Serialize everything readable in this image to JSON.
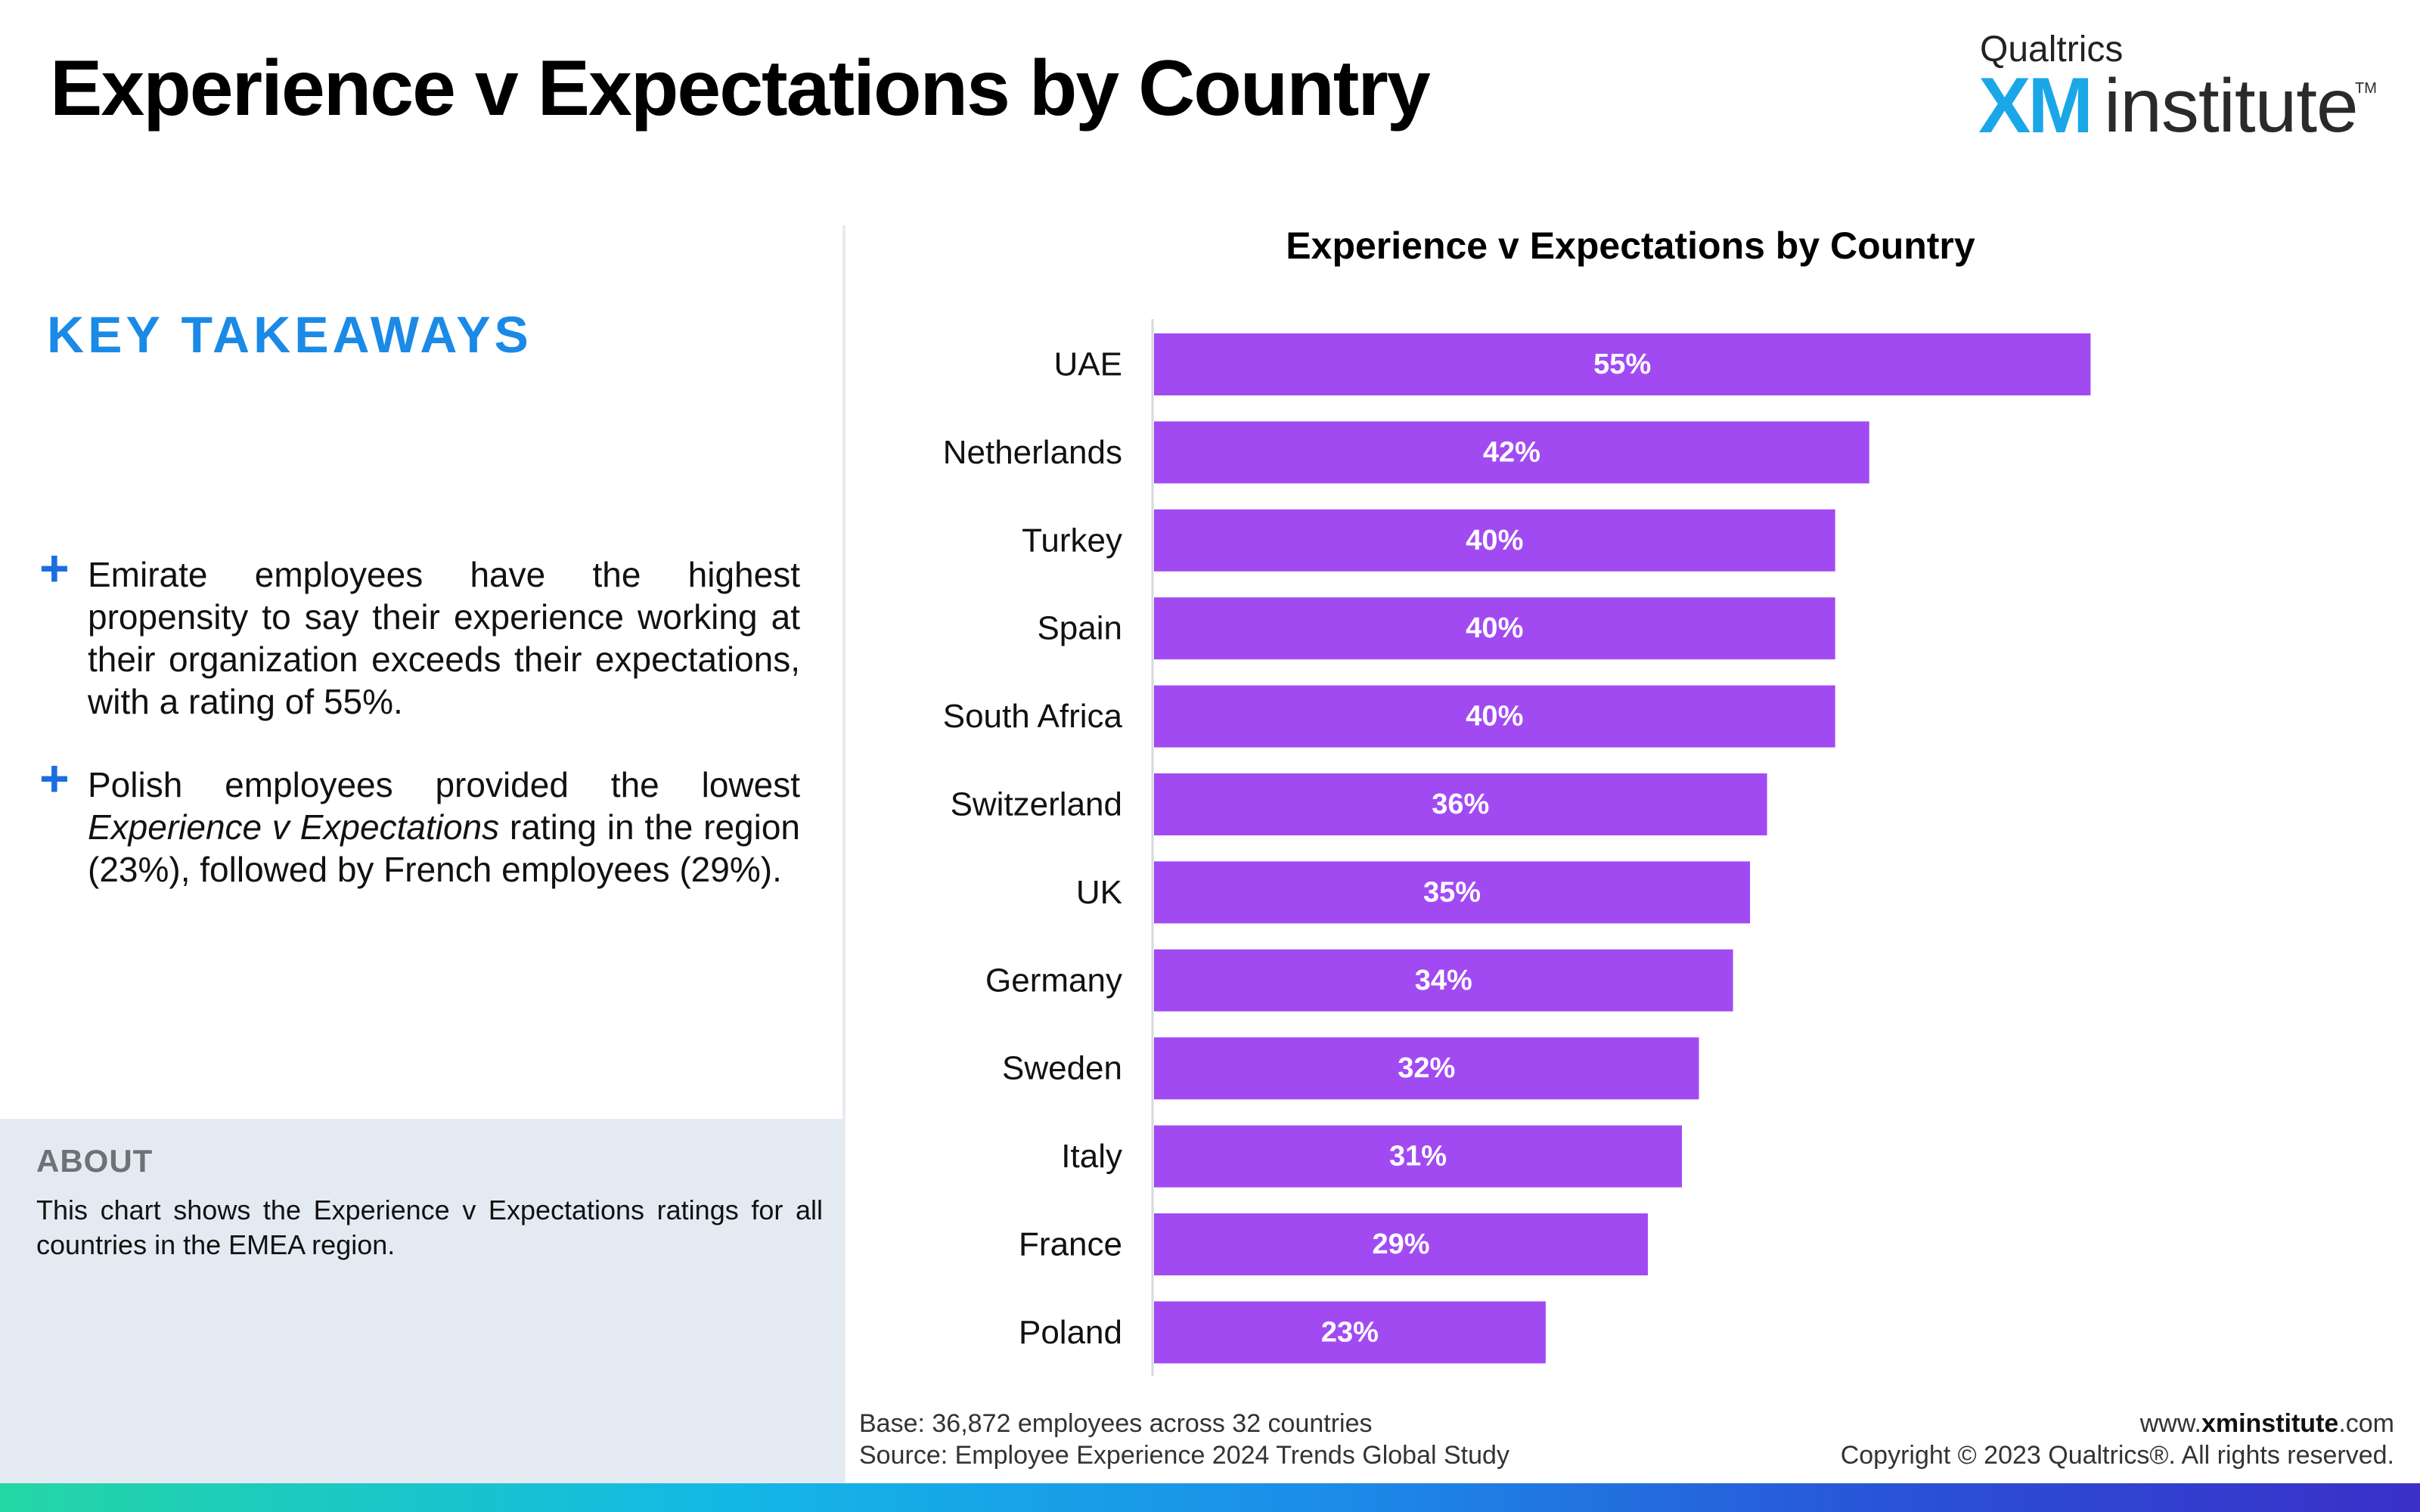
{
  "header": {
    "title": "Experience v Expectations by Country",
    "logo": {
      "company": "Qualtrics",
      "brand_xm": "XM",
      "brand_rest": "institute",
      "trademark": "TM"
    }
  },
  "takeaways": {
    "heading": "KEY TAKEAWAYS",
    "bullet_symbol": "+",
    "item1": "Emirate employees have the highest propensity to say their experience working at their organization exceeds their expectations, with a rating of 55%.",
    "item2": {
      "part1": "Polish employees provided the lowest ",
      "italic": "Experience v Expectations",
      "part2": " rating in the region (23%), followed by French employees (29%)."
    }
  },
  "about": {
    "heading": "ABOUT",
    "text": "This chart shows the Experience v Expectations ratings for all countries in the EMEA region."
  },
  "chart_data": {
    "type": "bar",
    "orientation": "horizontal",
    "title": "Experience v Expectations by Country",
    "categories": [
      "UAE",
      "Netherlands",
      "Turkey",
      "Spain",
      "South Africa",
      "Switzerland",
      "UK",
      "Germany",
      "Sweden",
      "Italy",
      "France",
      "Poland"
    ],
    "values": [
      55,
      42,
      40,
      40,
      40,
      36,
      35,
      34,
      32,
      31,
      29,
      23
    ],
    "value_labels": [
      "55%",
      "42%",
      "40%",
      "40%",
      "40%",
      "36%",
      "35%",
      "34%",
      "32%",
      "31%",
      "29%",
      "23%"
    ],
    "xlim": [
      0,
      60
    ],
    "bar_color": "#a24af2",
    "label_color": "#ffffff",
    "grid": false
  },
  "footer": {
    "base": "Base: 36,872 employees across 32 countries",
    "source": "Source: Employee Experience 2024 Trends Global Study",
    "website_prefix": "www.",
    "website_bold": "xminstitute",
    "website_suffix": ".com",
    "copyright": "Copyright © 2023 Qualtrics®. All rights reserved."
  },
  "colors": {
    "accent_blue": "#1a8ae6",
    "bar_purple": "#a24af2",
    "about_bg": "#e3eaf2"
  }
}
